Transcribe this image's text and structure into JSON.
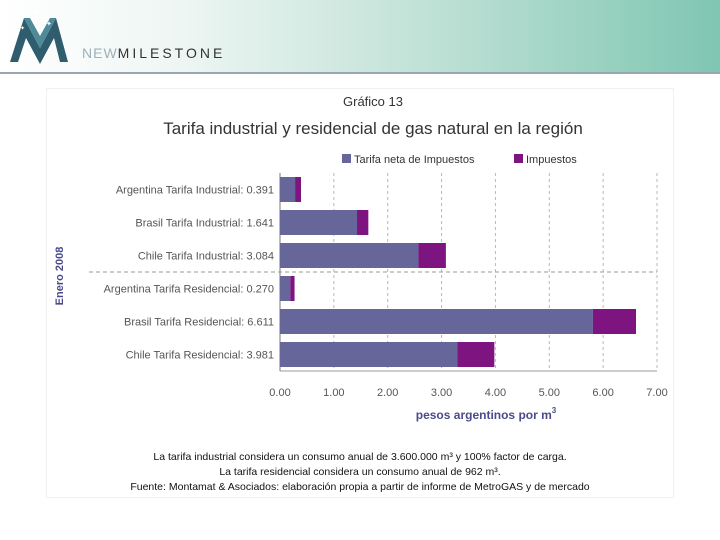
{
  "header": {
    "brand_prefix": "NEW",
    "brand_main": "MILESTONE"
  },
  "chart_data": {
    "type": "bar",
    "orientation": "horizontal",
    "stacked": true,
    "suptitle": "Gráfico 13",
    "title": "Tarifa industrial y residencial de gas natural en la región",
    "xlabel": "pesos argentinos por m",
    "xlabel_sup": "3",
    "ylabel": "Enero 2008",
    "xlim": [
      0,
      7
    ],
    "xticks": [
      "0.00",
      "1.00",
      "2.00",
      "3.00",
      "4.00",
      "5.00",
      "6.00",
      "7.00"
    ],
    "legend_position": "top-right",
    "categories": [
      "Argentina Tarifa Industrial: 0.391",
      "Brasil Tarifa Industrial: 1.641",
      "Chile Tarifa Industrial: 3.084",
      "Argentina Tarifa Residencial: 0.270",
      "Brasil Tarifa Residencial: 6.611",
      "Chile Tarifa Residencial: 3.981"
    ],
    "series": [
      {
        "name": "Tarifa neta de Impuestos",
        "color": "#66669a",
        "values": [
          0.28,
          1.43,
          2.57,
          0.19,
          5.81,
          3.29
        ]
      },
      {
        "name": "Impuestos",
        "color": "#7d1480",
        "values": [
          0.11,
          0.21,
          0.51,
          0.08,
          0.8,
          0.69
        ]
      }
    ]
  },
  "footnotes": [
    "La tarifa industrial considera un consumo anual de 3.600.000 m³ y 100% factor de carga.",
    "La tarifa residencial considera un consumo anual de 962 m³.",
    "Fuente: Montamat & Asociados: elaboración propia a partir de informe de MetroGAS y de mercado"
  ]
}
